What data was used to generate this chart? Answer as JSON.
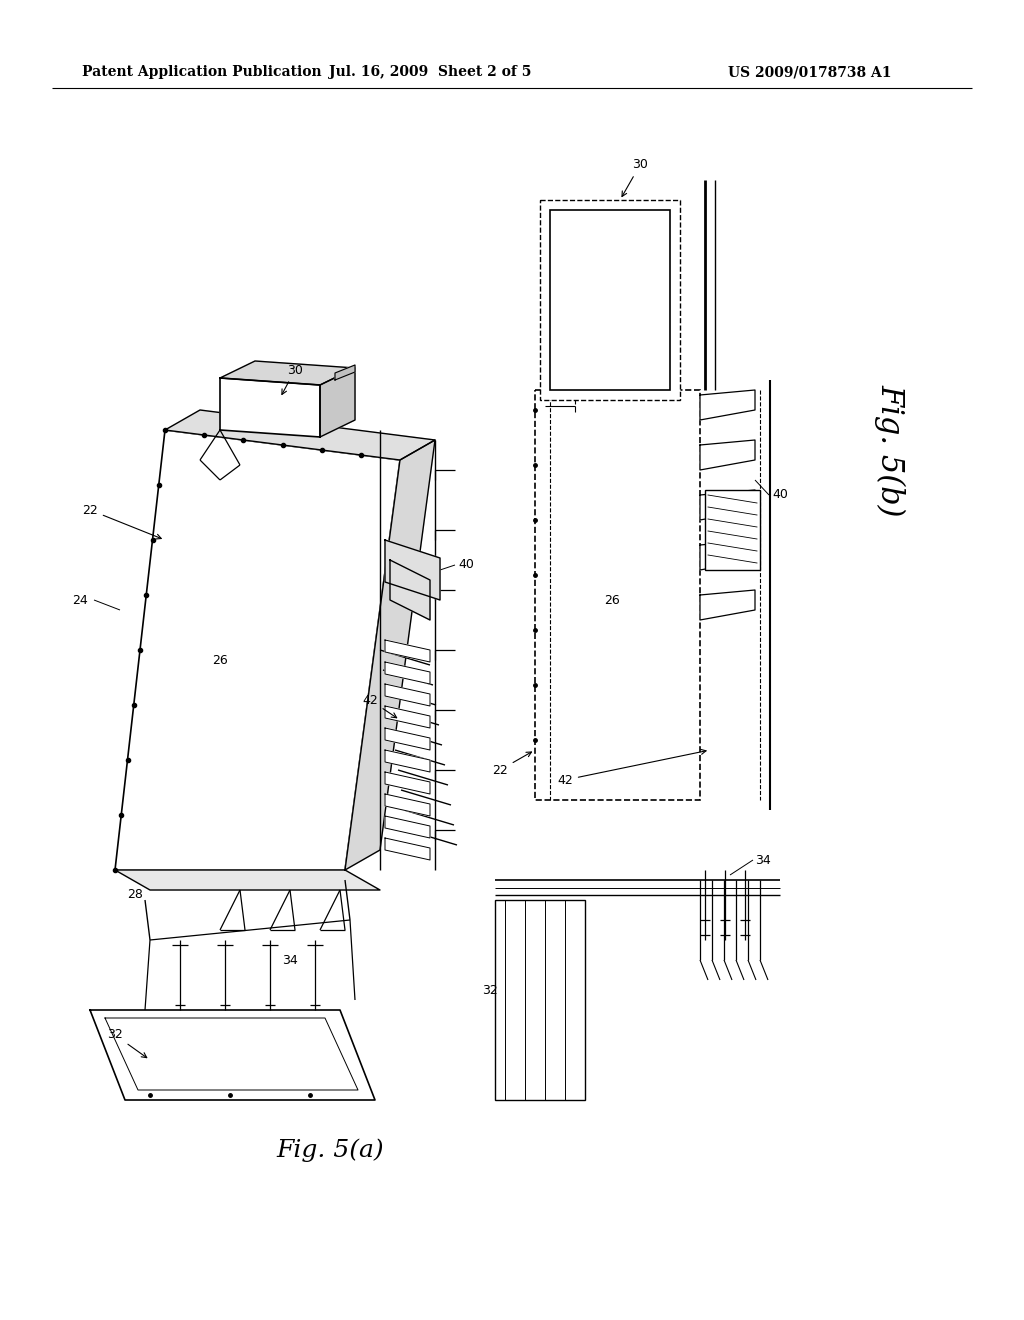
{
  "background_color": "#ffffff",
  "header_text": "Patent Application Publication",
  "header_date": "Jul. 16, 2009  Sheet 2 of 5",
  "header_patent": "US 2009/0178738 A1",
  "fig_a_label": "Fig. 5(a)",
  "fig_b_label": "Fig. 5(b)"
}
